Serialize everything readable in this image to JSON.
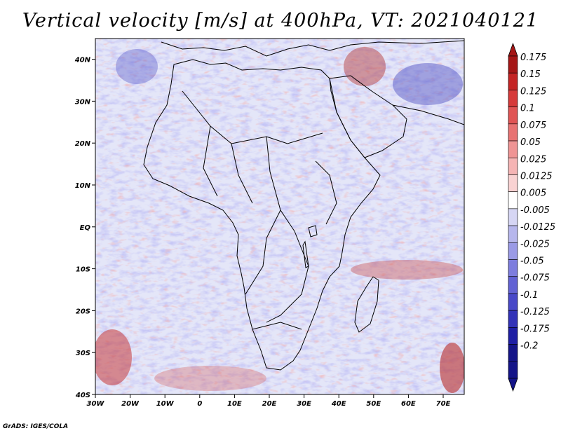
{
  "title": "Vertical velocity [m/s] at 400hPa, VT: 2021040121",
  "credit": "GrADS: IGES/COLA",
  "map": {
    "lon_ticks": [
      "30W",
      "20W",
      "10W",
      "0",
      "10E",
      "20E",
      "30E",
      "40E",
      "50E",
      "60E",
      "70E"
    ],
    "lat_ticks": [
      "40S",
      "30S",
      "20S",
      "10S",
      "EQ",
      "10N",
      "20N",
      "30N",
      "40N"
    ],
    "lon_range": [
      -30,
      75
    ],
    "lat_range": [
      -40,
      44
    ]
  },
  "colorbar": {
    "labels": [
      "0.175",
      "0.15",
      "0.125",
      "0.1",
      "0.075",
      "0.05",
      "0.025",
      "0.0125",
      "0.005",
      "-0.005",
      "-0.0125",
      "-0.025",
      "-0.05",
      "-0.075",
      "-0.1",
      "-0.125",
      "-0.175",
      "-0.2"
    ],
    "colors": [
      "#a51616",
      "#c42424",
      "#d63a3a",
      "#e05454",
      "#e87272",
      "#ef9494",
      "#f5b4b4",
      "#f9d2d2",
      "#ffffff",
      "#d6d6f4",
      "#b6b6ec",
      "#9a9ae6",
      "#7d7dde",
      "#6262d4",
      "#4848c8",
      "#3232b8",
      "#1e1ea4",
      "#141488"
    ],
    "top_color": "#a51616",
    "bottom_color": "#141488"
  },
  "legend_colors": {
    "background": "#dfe2f7",
    "positive": "#e36a6a",
    "negative": "#6a6ad8",
    "coast": "#000000"
  }
}
